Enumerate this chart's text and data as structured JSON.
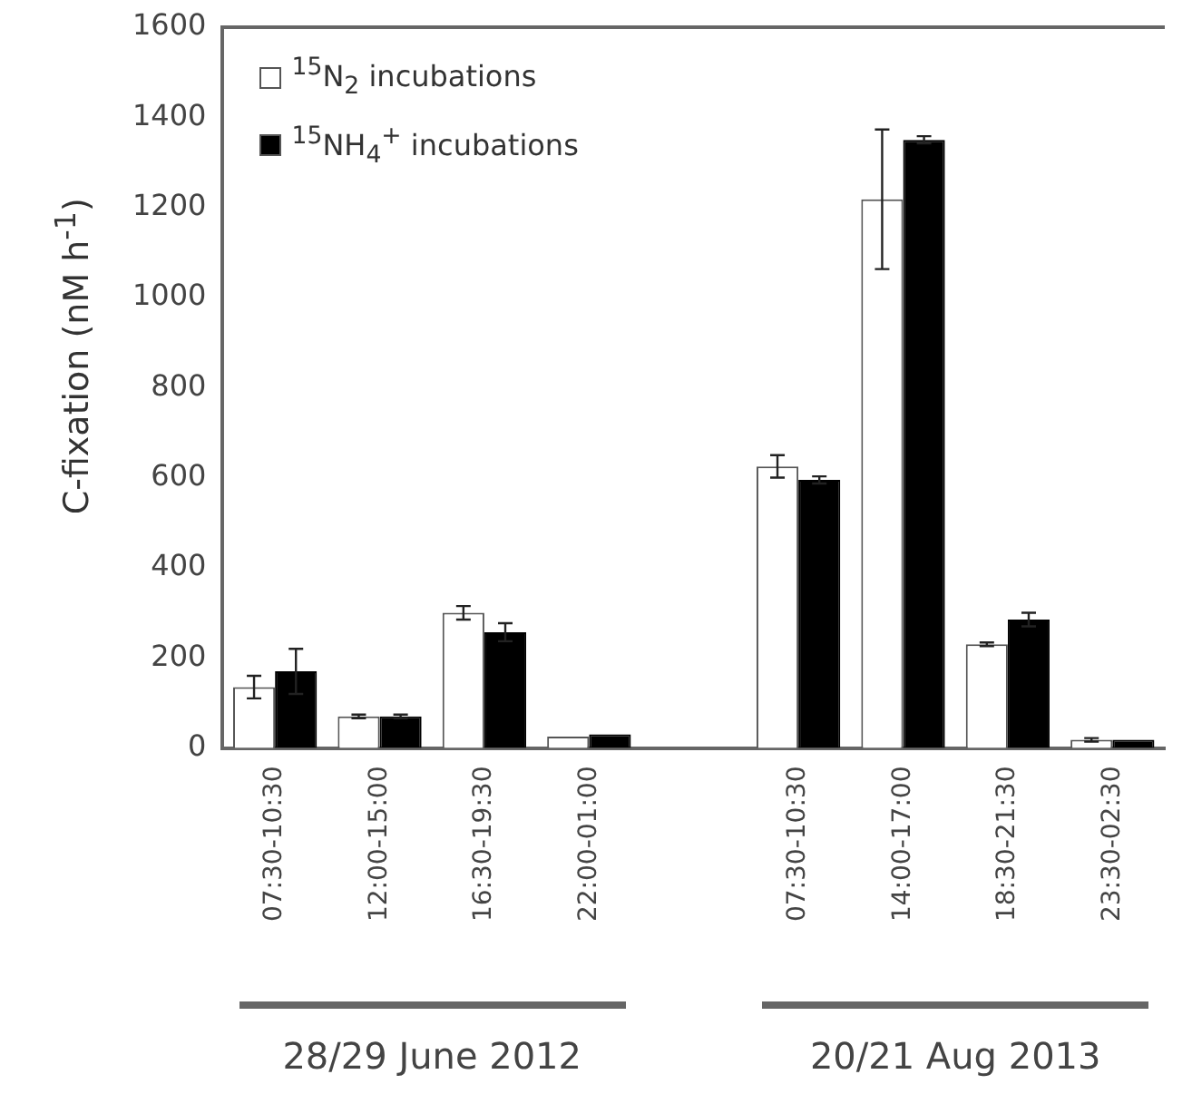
{
  "chart_data": {
    "type": "bar",
    "ylabel": "C-fixation (nM h$^{-1}$)",
    "categories": [
      "07:30-10:30",
      "12:00-15:00",
      "16:30-19:30",
      "22:00-01:00",
      null,
      "07:30-10:30",
      "14:00-17:00",
      "18:30-21:30",
      "23:30-02:30"
    ],
    "series": [
      {
        "name": "$^{15}$N$_{2}$ incubations",
        "color": "#ffffff",
        "values": [
          135,
          70,
          300,
          25,
          null,
          625,
          1218,
          230,
          18
        ],
        "errors": [
          25,
          4,
          15,
          null,
          null,
          25,
          155,
          4,
          4
        ]
      },
      {
        "name": "$^{15}$NH$_{4}$$^{+}$ incubations",
        "color": "#000000",
        "values": [
          170,
          70,
          257,
          30,
          null,
          595,
          1350,
          285,
          18
        ],
        "errors": [
          50,
          4,
          20,
          null,
          null,
          8,
          8,
          15,
          null
        ]
      }
    ],
    "ylim": [
      0,
      1600
    ],
    "yticks": [
      0,
      200,
      400,
      600,
      800,
      1000,
      1200,
      1400,
      1600
    ],
    "grid": false,
    "legend": "top left",
    "annotations": [
      "28/29 June 2012",
      "20/21 Aug 2013"
    ]
  }
}
